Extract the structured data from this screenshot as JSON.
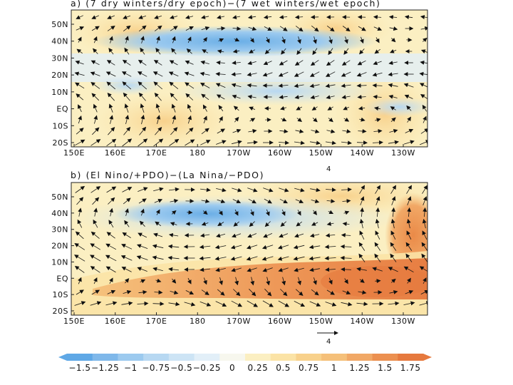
{
  "panels": [
    {
      "id": "a",
      "title": "a) (7 dry winters/dry epoch)−(7 wet winters/wet epoch)",
      "lat_ticks": [
        "50N",
        "40N",
        "30N",
        "20N",
        "10N",
        "EQ",
        "10S",
        "20S"
      ],
      "lon_ticks": [
        "150E",
        "160E",
        "170E",
        "180",
        "170W",
        "160W",
        "150W",
        "140W",
        "130W"
      ],
      "corner_label": ""
    },
    {
      "id": "b",
      "title": "b) (El Nino/+PDO)−(La Nina/−PDO)",
      "lat_ticks": [
        "50N",
        "40N",
        "30N",
        "20N",
        "10N",
        "EQ",
        "10S",
        "20S"
      ],
      "lon_ticks": [
        "150E",
        "160E",
        "170E",
        "180",
        "170W",
        "160W",
        "150W",
        "140W",
        "130W"
      ],
      "corner_label": "4"
    }
  ],
  "reference_vector": {
    "label": "4"
  },
  "colorbar": {
    "labels": [
      "−1.5",
      "−1.25",
      "−1",
      "−0.75",
      "−0.5",
      "−0.25",
      "0",
      "0.25",
      "0.5",
      "0.75",
      "1",
      "1.25",
      "1.5",
      "1.75"
    ],
    "colors": [
      "#5fa8e6",
      "#7fb8ea",
      "#9ccaef",
      "#b7d8f2",
      "#cde4f5",
      "#e2eff8",
      "#f7f7ee",
      "#fbefc2",
      "#fbe3a6",
      "#f8d18c",
      "#f5c07a",
      "#f1a866",
      "#ec9050",
      "#e6793e"
    ]
  },
  "colors": {
    "negative": "#5fa8e6",
    "positive": "#e6793e"
  }
}
